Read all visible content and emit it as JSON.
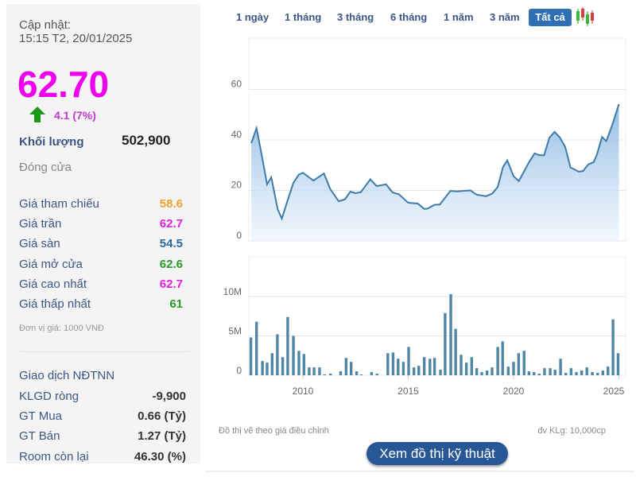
{
  "quote": {
    "update_label": "Cập nhật:",
    "update_time": "15:15 T2, 20/01/2025",
    "price": "62.70",
    "change": "4.1 (7%)",
    "volume_label": "Khối lượng",
    "volume": "502,900",
    "status": "Đóng cửa",
    "rows": [
      {
        "label": "Giá tham chiếu",
        "value": "58.6",
        "color": "#f0a030"
      },
      {
        "label": "Giá trần",
        "value": "62.7",
        "color": "#e020e0"
      },
      {
        "label": "Giá sàn",
        "value": "54.5",
        "color": "#2a6a98"
      },
      {
        "label": "Giá mở cửa",
        "value": "62.6",
        "color": "#2a9a2a"
      },
      {
        "label": "Giá cao nhất",
        "value": "62.7",
        "color": "#e020e0"
      },
      {
        "label": "Giá thấp nhất",
        "value": "61",
        "color": "#2a9a2a"
      }
    ],
    "unit_note": "Đơn vị giá: 1000 VNĐ",
    "foreign_title": "Giao dịch NĐTNN",
    "foreign_rows": [
      {
        "label": "KLGD ròng",
        "value": "-9,900"
      },
      {
        "label": "GT Mua",
        "value": "0.66 (Tỷ)"
      },
      {
        "label": "GT Bán",
        "value": "1.27 (Tỷ)"
      },
      {
        "label": "Room còn lại",
        "value": "46.30 (%)"
      }
    ],
    "price_color": "#ee00ee",
    "up_color": "#1a9a1a"
  },
  "ranges": [
    "1 ngày",
    "1 tháng",
    "3 tháng",
    "6 tháng",
    "1 năm",
    "3 năm",
    "Tất cả"
  ],
  "selected_range": "Tất cả",
  "footer": {
    "note": "Đồ thị vẽ theo giá điều chỉnh",
    "unit": "đv KLg: 10,000cp",
    "tech_button": "Xem đồ thị kỹ thuật"
  },
  "chart_data": [
    {
      "type": "area",
      "yticks": [
        "0",
        "20",
        "40",
        "60"
      ],
      "ylim": [
        0,
        80
      ],
      "xlim": [
        2007.5,
        2025.3
      ],
      "grid": true,
      "color": "#3e7ba8",
      "x": [
        2007.55,
        2007.8,
        2008.1,
        2008.3,
        2008.5,
        2008.8,
        2009.0,
        2009.3,
        2009.55,
        2009.8,
        2010.0,
        2010.5,
        2011.0,
        2011.3,
        2011.7,
        2012.0,
        2012.25,
        2012.5,
        2012.75,
        2013.2,
        2013.5,
        2013.95,
        2014.25,
        2014.55,
        2015.0,
        2015.45,
        2015.75,
        2015.9,
        2016.25,
        2016.5,
        2017.0,
        2017.3,
        2017.95,
        2018.25,
        2018.7,
        2019.0,
        2019.25,
        2019.5,
        2019.7,
        2020.0,
        2020.25,
        2020.75,
        2021.0,
        2021.2,
        2021.45,
        2021.7,
        2021.95,
        2022.2,
        2022.45,
        2022.7,
        2023.1,
        2023.3,
        2023.55,
        2023.8,
        2023.95,
        2024.2,
        2024.4,
        2024.7,
        2025.0
      ],
      "y": [
        38.7,
        44.7,
        31.5,
        22.4,
        25.2,
        12.6,
        8.8,
        16.7,
        23,
        26.2,
        27,
        23.9,
        26.7,
        20.5,
        15.7,
        16.5,
        19.5,
        18.9,
        19.3,
        24.4,
        21.7,
        22.4,
        19.2,
        18.5,
        15.1,
        14.8,
        12.7,
        12.7,
        14.3,
        14.4,
        19.8,
        19.6,
        20,
        18.3,
        17.7,
        18.8,
        21.4,
        29.3,
        31.9,
        25.6,
        23.7,
        31.4,
        34.7,
        34,
        33.9,
        40.9,
        43.2,
        40.9,
        37.2,
        29.1,
        27.4,
        27.7,
        30.3,
        31.2,
        34,
        41.2,
        39.5,
        46.3,
        54.2
      ]
    },
    {
      "type": "bar",
      "yticks": [
        "0",
        "5M",
        "10M"
      ],
      "ylim": [
        0,
        15
      ],
      "xticks": [
        "2010",
        "2015",
        "2020",
        "2025"
      ],
      "color": "#4f86a6",
      "x": [
        2007.53,
        2007.8,
        2008.08,
        2008.3,
        2008.54,
        2008.79,
        2009.04,
        2009.28,
        2009.55,
        2009.81,
        2010.05,
        2010.3,
        2010.53,
        2010.79,
        2011.03,
        2011.31,
        2011.79,
        2012.05,
        2012.29,
        2012.55,
        2012.77,
        2013.26,
        2013.52,
        2014.03,
        2014.28,
        2014.52,
        2014.77,
        2015.02,
        2015.27,
        2015.5,
        2015.76,
        2016.03,
        2016.25,
        2016.53,
        2016.75,
        2017.02,
        2017.25,
        2017.51,
        2017.76,
        2018.01,
        2018.25,
        2018.49,
        2018.74,
        2018.98,
        2019.25,
        2019.48,
        2019.75,
        2020.0,
        2020.24,
        2020.5,
        2020.73,
        2020.97,
        2021.22,
        2021.47,
        2021.74,
        2021.97,
        2022.23,
        2022.48,
        2022.73,
        2022.98,
        2023.23,
        2023.48,
        2023.74,
        2023.99,
        2024.24,
        2024.48,
        2024.72,
        2024.96
      ],
      "y": [
        4.8,
        6.8,
        1.8,
        1.6,
        2.8,
        5.2,
        2.3,
        7.4,
        5.0,
        3.1,
        2.7,
        1.0,
        1.0,
        1.0,
        0.1,
        0.2,
        0.5,
        2.2,
        1.7,
        0.5,
        0.1,
        0.4,
        0.2,
        2.8,
        2.9,
        2.1,
        1.7,
        3.6,
        1.0,
        1.2,
        2.3,
        2.1,
        2.2,
        0.7,
        7.9,
        10.3,
        5.9,
        2.6,
        1.6,
        2.3,
        0.9,
        0.4,
        0.6,
        1.0,
        3.6,
        4.3,
        1.1,
        1.7,
        2.8,
        3.1,
        0.5,
        0.4,
        0.2,
        0.9,
        0.9,
        0.7,
        2.1,
        0.3,
        0.9,
        0.4,
        0.6,
        1.0,
        0.4,
        0.3,
        0.6,
        1.1,
        7.1,
        2.8
      ]
    }
  ]
}
